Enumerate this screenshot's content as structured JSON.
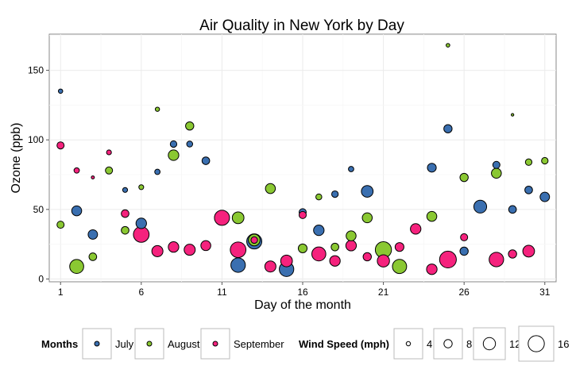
{
  "chart_data": {
    "type": "scatter",
    "title": "Air Quality in New York by Day",
    "xlabel": "Day of the month",
    "ylabel": "Ozone (ppb)",
    "xlim": [
      0.3,
      31.7
    ],
    "ylim": [
      -2,
      176
    ],
    "x_ticks": [
      1,
      6,
      11,
      16,
      21,
      26,
      31
    ],
    "y_ticks": [
      0,
      50,
      100,
      150
    ],
    "grid": true,
    "legend_position": "bottom",
    "size_variable": "Wind Speed (mph)",
    "series": [
      {
        "name": "July",
        "color": "#3a6fb0",
        "points": [
          {
            "x": 1,
            "y": 135,
            "wind": 4.1
          },
          {
            "x": 2,
            "y": 49,
            "wind": 9.7
          },
          {
            "x": 3,
            "y": 32,
            "wind": 9.2
          },
          {
            "x": 5,
            "y": 64,
            "wind": 4.6
          },
          {
            "x": 6,
            "y": 40,
            "wind": 10.3
          },
          {
            "x": 7,
            "y": 77,
            "wind": 5.1
          },
          {
            "x": 8,
            "y": 97,
            "wind": 6.3
          },
          {
            "x": 9,
            "y": 97,
            "wind": 5.7
          },
          {
            "x": 10,
            "y": 85,
            "wind": 7.4
          },
          {
            "x": 12,
            "y": 10,
            "wind": 14.3
          },
          {
            "x": 13,
            "y": 27,
            "wind": 14.9
          },
          {
            "x": 15,
            "y": 7,
            "wind": 14.3
          },
          {
            "x": 16,
            "y": 48,
            "wind": 6.9
          },
          {
            "x": 17,
            "y": 35,
            "wind": 10.3
          },
          {
            "x": 18,
            "y": 61,
            "wind": 6.3
          },
          {
            "x": 19,
            "y": 79,
            "wind": 5.1
          },
          {
            "x": 20,
            "y": 63,
            "wind": 11.5
          },
          {
            "x": 24,
            "y": 80,
            "wind": 8.6
          },
          {
            "x": 25,
            "y": 108,
            "wind": 8.0
          },
          {
            "x": 26,
            "y": 20,
            "wind": 8.0
          },
          {
            "x": 27,
            "y": 52,
            "wind": 12.6
          },
          {
            "x": 28,
            "y": 82,
            "wind": 6.9
          },
          {
            "x": 29,
            "y": 50,
            "wind": 7.4
          },
          {
            "x": 30,
            "y": 64,
            "wind": 7.4
          },
          {
            "x": 31,
            "y": 59,
            "wind": 9.2
          }
        ]
      },
      {
        "name": "August",
        "color": "#8ac832",
        "points": [
          {
            "x": 1,
            "y": 39,
            "wind": 6.9
          },
          {
            "x": 2,
            "y": 9,
            "wind": 13.8
          },
          {
            "x": 3,
            "y": 16,
            "wind": 7.4
          },
          {
            "x": 4,
            "y": 78,
            "wind": 6.9
          },
          {
            "x": 5,
            "y": 35,
            "wind": 7.4
          },
          {
            "x": 6,
            "y": 66,
            "wind": 4.6
          },
          {
            "x": 7,
            "y": 122,
            "wind": 4.0
          },
          {
            "x": 8,
            "y": 89,
            "wind": 10.3
          },
          {
            "x": 9,
            "y": 110,
            "wind": 8.0
          },
          {
            "x": 12,
            "y": 44,
            "wind": 11.5
          },
          {
            "x": 13,
            "y": 28,
            "wind": 11.5
          },
          {
            "x": 14,
            "y": 65,
            "wind": 9.7
          },
          {
            "x": 16,
            "y": 22,
            "wind": 8.6
          },
          {
            "x": 17,
            "y": 59,
            "wind": 5.7
          },
          {
            "x": 18,
            "y": 23,
            "wind": 7.4
          },
          {
            "x": 19,
            "y": 31,
            "wind": 9.7
          },
          {
            "x": 20,
            "y": 44,
            "wind": 9.7
          },
          {
            "x": 21,
            "y": 21,
            "wind": 16.0
          },
          {
            "x": 22,
            "y": 9,
            "wind": 14.0
          },
          {
            "x": 24,
            "y": 45,
            "wind": 9.7
          },
          {
            "x": 25,
            "y": 168,
            "wind": 3.4
          },
          {
            "x": 26,
            "y": 73,
            "wind": 8.0
          },
          {
            "x": 28,
            "y": 76,
            "wind": 9.7
          },
          {
            "x": 29,
            "y": 118,
            "wind": 2.3
          },
          {
            "x": 30,
            "y": 84,
            "wind": 6.3
          },
          {
            "x": 31,
            "y": 85,
            "wind": 6.3
          }
        ]
      },
      {
        "name": "September",
        "color": "#f5227d",
        "points": [
          {
            "x": 1,
            "y": 96,
            "wind": 6.9
          },
          {
            "x": 2,
            "y": 78,
            "wind": 5.1
          },
          {
            "x": 3,
            "y": 73,
            "wind": 2.8
          },
          {
            "x": 4,
            "y": 91,
            "wind": 4.6
          },
          {
            "x": 5,
            "y": 47,
            "wind": 7.4
          },
          {
            "x": 6,
            "y": 32,
            "wind": 15.5
          },
          {
            "x": 7,
            "y": 20,
            "wind": 10.9
          },
          {
            "x": 8,
            "y": 23,
            "wind": 10.3
          },
          {
            "x": 9,
            "y": 21,
            "wind": 10.9
          },
          {
            "x": 10,
            "y": 24,
            "wind": 9.7
          },
          {
            "x": 11,
            "y": 44,
            "wind": 14.9
          },
          {
            "x": 12,
            "y": 21,
            "wind": 15.5
          },
          {
            "x": 13,
            "y": 28,
            "wind": 6.3
          },
          {
            "x": 14,
            "y": 9,
            "wind": 10.9
          },
          {
            "x": 15,
            "y": 13,
            "wind": 11.5
          },
          {
            "x": 16,
            "y": 46,
            "wind": 6.9
          },
          {
            "x": 17,
            "y": 18,
            "wind": 13.8
          },
          {
            "x": 18,
            "y": 13,
            "wind": 10.3
          },
          {
            "x": 19,
            "y": 24,
            "wind": 10.3
          },
          {
            "x": 20,
            "y": 16,
            "wind": 8.0
          },
          {
            "x": 21,
            "y": 13,
            "wind": 12.0
          },
          {
            "x": 22,
            "y": 23,
            "wind": 8.6
          },
          {
            "x": 23,
            "y": 36,
            "wind": 10.3
          },
          {
            "x": 24,
            "y": 7,
            "wind": 10.3
          },
          {
            "x": 25,
            "y": 14,
            "wind": 16.6
          },
          {
            "x": 26,
            "y": 30,
            "wind": 6.9
          },
          {
            "x": 28,
            "y": 14,
            "wind": 14.3
          },
          {
            "x": 29,
            "y": 18,
            "wind": 8.0
          },
          {
            "x": 30,
            "y": 20,
            "wind": 11.5
          }
        ]
      }
    ]
  },
  "legend": {
    "months_title": "Months",
    "months": [
      {
        "label": "July",
        "color": "#3a6fb0"
      },
      {
        "label": "August",
        "color": "#8ac832"
      },
      {
        "label": "September",
        "color": "#f5227d"
      }
    ],
    "wind_title": "Wind Speed (mph)",
    "wind": [
      {
        "label": "4",
        "value": 4
      },
      {
        "label": "8",
        "value": 8
      },
      {
        "label": "12",
        "value": 12
      },
      {
        "label": "16",
        "value": 16
      }
    ]
  }
}
